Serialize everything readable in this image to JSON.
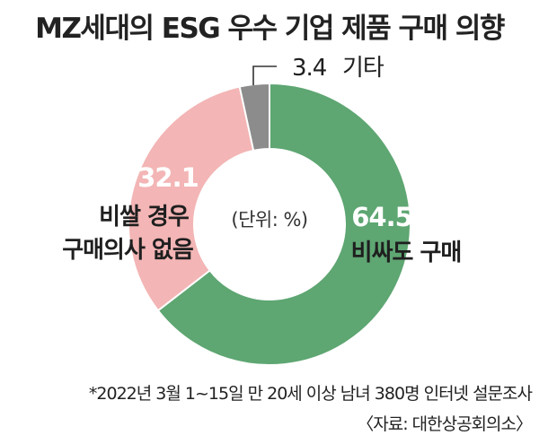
{
  "title": "MZ세대의 ESG 우수 기업 제품 구매 의향",
  "unit_label": "(단위: %)",
  "footnote": "*2022년 3월 1~15일 만 20세 이상 남녀 380명 인터넷 설문조사",
  "source": "〈자료: 대한상공회의소〉",
  "chart_data": {
    "type": "pie",
    "donut": true,
    "title": "MZ세대의 ESG 우수 기업 제품 구매 의향",
    "unit": "%",
    "slices": [
      {
        "label_lines": [
          "비싸도 구매"
        ],
        "value": 64.5,
        "value_text": "64.5",
        "color": "#5ea672"
      },
      {
        "label_lines": [
          "비쌀 경우",
          "구매의사 없음"
        ],
        "value": 32.1,
        "value_text": "32.1",
        "color": "#f3b5b5"
      },
      {
        "label_lines": [
          "기타"
        ],
        "value": 3.4,
        "value_text": "3.4",
        "color": "#8c8c8c"
      }
    ]
  }
}
